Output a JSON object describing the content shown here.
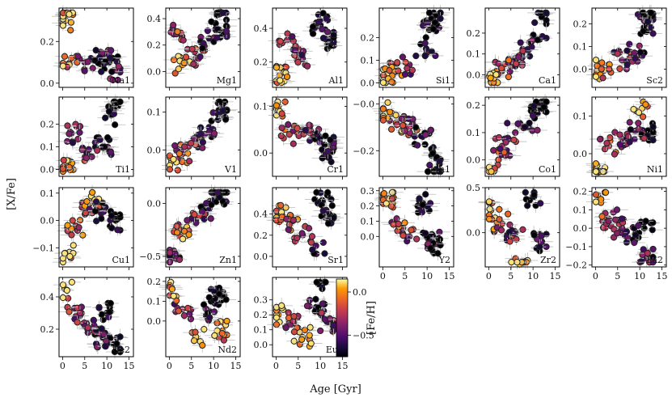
{
  "chart_data": {
    "type": "scatter",
    "xlabel": "Age [Gyr]",
    "ylabel": "[X/Fe]",
    "colorbar": {
      "label": "[Fe/H]",
      "range": [
        -0.75,
        0.15
      ],
      "ticks": [
        "0.0",
        "−0.5"
      ],
      "tick_values": [
        0.0,
        -0.5
      ],
      "cmap": "inferno"
    },
    "x_ticks": [
      "0",
      "5",
      "10",
      "15"
    ],
    "x_tick_values": [
      0,
      5,
      10,
      15
    ],
    "xlim": [
      -0.8,
      16
    ],
    "panels": [
      {
        "label": "Na1",
        "ylim": [
          -0.02,
          0.36
        ],
        "yticks": [
          "0.0",
          "0.2"
        ],
        "ytick_values": [
          0.0,
          0.2
        ]
      },
      {
        "label": "Mg1",
        "ylim": [
          -0.12,
          0.48
        ],
        "yticks": [
          "0.0",
          "0.2",
          "0.4"
        ],
        "ytick_values": [
          0.0,
          0.2,
          0.4
        ]
      },
      {
        "label": "Al1",
        "ylim": [
          0.05,
          0.52
        ],
        "yticks": [
          "0.2",
          "0.4"
        ],
        "ytick_values": [
          0.2,
          0.4
        ]
      },
      {
        "label": "Si1",
        "ylim": [
          -0.02,
          0.33
        ],
        "yticks": [
          "0.0",
          "0.1",
          "0.2"
        ],
        "ytick_values": [
          0.0,
          0.1,
          0.2
        ]
      },
      {
        "label": "Ca1",
        "ylim": [
          -0.06,
          0.32
        ],
        "yticks": [
          "0.0",
          "0.1",
          "0.2"
        ],
        "ytick_values": [
          0.0,
          0.1,
          0.2
        ]
      },
      {
        "label": "Sc2",
        "ylim": [
          -0.08,
          0.27
        ],
        "yticks": [
          "0.0",
          "0.1",
          "0.2"
        ],
        "ytick_values": [
          0.0,
          0.1,
          0.2
        ]
      },
      {
        "label": "Ti1",
        "ylim": [
          -0.03,
          0.32
        ],
        "yticks": [
          "0.0",
          "0.1",
          "0.2"
        ],
        "ytick_values": [
          0.0,
          0.1,
          0.2
        ]
      },
      {
        "label": "V1",
        "ylim": [
          -0.07,
          0.14
        ],
        "yticks": [
          "0.0",
          "0.1"
        ],
        "ytick_values": [
          0.0,
          0.1
        ]
      },
      {
        "label": "Cr1",
        "ylim": [
          -0.05,
          0.12
        ],
        "yticks": [
          "0.0",
          "0.1"
        ],
        "ytick_values": [
          0.0,
          0.1
        ]
      },
      {
        "label": "Mn1",
        "ylim": [
          -0.31,
          0.03
        ],
        "yticks": [
          "−0.2",
          "−0.0"
        ],
        "ytick_values": [
          -0.2,
          0.0
        ]
      },
      {
        "label": "Co1",
        "ylim": [
          -0.06,
          0.23
        ],
        "yticks": [
          "0.0",
          "0.1",
          "0.2"
        ],
        "ytick_values": [
          0.0,
          0.1,
          0.2
        ]
      },
      {
        "label": "Ni1",
        "ylim": [
          -0.06,
          0.15
        ],
        "yticks": [
          "0.0",
          "0.1"
        ],
        "ytick_values": [
          0.0,
          0.1
        ]
      },
      {
        "label": "Cu1",
        "ylim": [
          -0.17,
          0.12
        ],
        "yticks": [
          "−0.1",
          "0.0",
          "0.1"
        ],
        "ytick_values": [
          -0.1,
          0.0,
          0.1
        ]
      },
      {
        "label": "Zn1",
        "ylim": [
          -0.6,
          0.15
        ],
        "yticks": [
          "−0.5",
          "0.0"
        ],
        "ytick_values": [
          -0.5,
          0.0
        ]
      },
      {
        "label": "Sr1",
        "ylim": [
          -0.1,
          0.65
        ],
        "yticks": [
          "0.0",
          "0.2",
          "0.4"
        ],
        "ytick_values": [
          0.0,
          0.2,
          0.4
        ]
      },
      {
        "label": "Y2",
        "ylim": [
          -0.2,
          0.32
        ],
        "yticks": [
          "0.0",
          "0.1",
          "0.2",
          "0.3"
        ],
        "ytick_values": [
          0.0,
          0.1,
          0.2,
          0.3
        ]
      },
      {
        "label": "Zr2",
        "ylim": [
          -0.38,
          0.5
        ],
        "yticks": [
          "0.0",
          "0.5"
        ],
        "ytick_values": [
          0.0,
          0.5
        ]
      },
      {
        "label": "La2",
        "ylim": [
          -0.21,
          0.22
        ],
        "yticks": [
          "−0.2",
          "−0.1",
          "0.0",
          "0.1",
          "0.2"
        ],
        "ytick_values": [
          -0.2,
          -0.1,
          0.0,
          0.1,
          0.2
        ]
      },
      {
        "label": "Ce2",
        "ylim": [
          0.03,
          0.52
        ],
        "yticks": [
          "0.2",
          "0.4"
        ],
        "ytick_values": [
          0.2,
          0.4
        ]
      },
      {
        "label": "Nd2",
        "ylim": [
          -0.18,
          0.22
        ],
        "yticks": [
          "0.0",
          "0.1",
          "0.2"
        ],
        "ytick_values": [
          0.0,
          0.1,
          0.2
        ]
      },
      {
        "label": "Eu2",
        "ylim": [
          -0.08,
          0.45
        ],
        "yticks": [
          "0.0",
          "0.1",
          "0.2",
          "0.3"
        ],
        "ytick_values": [
          0.0,
          0.1,
          0.2,
          0.3
        ]
      }
    ],
    "sample_points": {
      "note": "approximately 100 stars per panel; representative points read from the figure",
      "Na1": [
        [
          0.3,
          0.33,
          0.05
        ],
        [
          0.7,
          0.3,
          0.1
        ],
        [
          2,
          0.12,
          -0.1
        ],
        [
          5,
          0.1,
          -0.4
        ],
        [
          9,
          0.13,
          -0.6
        ],
        [
          10.5,
          0.1,
          -0.8
        ],
        [
          11.5,
          0.06,
          -0.5
        ]
      ],
      "Mg1": [
        [
          1.5,
          0.3,
          -0.2
        ],
        [
          3,
          0.05,
          0.05
        ],
        [
          6,
          0.1,
          -0.3
        ],
        [
          9,
          0.25,
          -0.6
        ],
        [
          11.5,
          0.45,
          -0.8
        ],
        [
          12,
          0.3,
          -0.7
        ]
      ],
      "Al1": [
        [
          0.8,
          0.12,
          0.05
        ],
        [
          2.5,
          0.33,
          -0.3
        ],
        [
          6,
          0.22,
          -0.4
        ],
        [
          10,
          0.42,
          -0.7
        ],
        [
          11.5,
          0.47,
          -0.8
        ],
        [
          12.5,
          0.33,
          -0.6
        ]
      ],
      "Si1": [
        [
          0.5,
          0.02,
          0.1
        ],
        [
          3,
          0.05,
          -0.1
        ],
        [
          6,
          0.08,
          -0.4
        ],
        [
          10,
          0.14,
          -0.5
        ],
        [
          11,
          0.24,
          -0.7
        ],
        [
          12.5,
          0.3,
          -0.8
        ]
      ],
      "Ca1": [
        [
          0.5,
          -0.03,
          0.1
        ],
        [
          3,
          0.03,
          -0.2
        ],
        [
          6,
          0.08,
          -0.4
        ],
        [
          9,
          0.12,
          -0.5
        ],
        [
          11.5,
          0.17,
          -0.7
        ],
        [
          12,
          0.29,
          -0.8
        ]
      ],
      "Sc2": [
        [
          0.5,
          0.0,
          0.0
        ],
        [
          3,
          0.02,
          -0.2
        ],
        [
          6,
          0.04,
          -0.4
        ],
        [
          9,
          0.07,
          -0.5
        ],
        [
          11.5,
          0.2,
          -0.7
        ],
        [
          12.5,
          0.23,
          -0.8
        ]
      ],
      "Ti1": [
        [
          0.5,
          0.0,
          0.05
        ],
        [
          2,
          0.16,
          -0.5
        ],
        [
          6,
          0.06,
          -0.4
        ],
        [
          9,
          0.1,
          -0.6
        ],
        [
          11,
          0.24,
          -0.8
        ],
        [
          12.5,
          0.28,
          -0.8
        ]
      ],
      "V1": [
        [
          0.5,
          -0.03,
          0.05
        ],
        [
          3,
          -0.01,
          -0.2
        ],
        [
          6,
          0.03,
          -0.4
        ],
        [
          9,
          0.06,
          -0.6
        ],
        [
          11,
          0.08,
          -0.7
        ],
        [
          12,
          0.12,
          -0.8
        ]
      ],
      "Cr1": [
        [
          0.5,
          0.1,
          0.05
        ],
        [
          3,
          0.04,
          -0.2
        ],
        [
          6,
          0.05,
          -0.4
        ],
        [
          9,
          0.04,
          -0.5
        ],
        [
          11,
          0.0,
          -0.6
        ],
        [
          12.5,
          0.02,
          -0.7
        ]
      ],
      "Mn1": [
        [
          0.5,
          -0.03,
          0.05
        ],
        [
          3,
          -0.08,
          -0.1
        ],
        [
          6,
          -0.1,
          -0.3
        ],
        [
          9,
          -0.14,
          -0.6
        ],
        [
          11,
          -0.22,
          -0.7
        ],
        [
          12,
          -0.28,
          -0.8
        ]
      ],
      "Co1": [
        [
          0.5,
          -0.03,
          0.05
        ],
        [
          3,
          0.05,
          -0.3
        ],
        [
          6,
          0.1,
          -0.4
        ],
        [
          9,
          0.12,
          -0.6
        ],
        [
          11,
          0.17,
          -0.7
        ],
        [
          12.5,
          0.21,
          -0.8
        ]
      ],
      "Ni1": [
        [
          0.5,
          -0.05,
          0.05
        ],
        [
          3,
          0.02,
          -0.2
        ],
        [
          6,
          0.04,
          -0.4
        ],
        [
          9,
          0.06,
          -0.5
        ],
        [
          10.5,
          0.12,
          0.1
        ],
        [
          12,
          0.06,
          -0.8
        ]
      ],
      "Cu1": [
        [
          0.5,
          -0.12,
          0.1
        ],
        [
          3,
          -0.02,
          -0.2
        ],
        [
          6,
          0.03,
          -0.4
        ],
        [
          7,
          0.07,
          0.1
        ],
        [
          9,
          0.04,
          -0.6
        ],
        [
          12,
          0.0,
          -0.8
        ]
      ],
      "Zn1": [
        [
          0.5,
          -0.52,
          -0.5
        ],
        [
          3,
          -0.25,
          -0.1
        ],
        [
          6,
          -0.15,
          -0.4
        ],
        [
          9,
          -0.05,
          -0.6
        ],
        [
          11,
          0.05,
          -0.7
        ],
        [
          12,
          0.1,
          -0.8
        ]
      ],
      "Sr1": [
        [
          0.5,
          0.4,
          0.05
        ],
        [
          3,
          0.3,
          -0.2
        ],
        [
          6,
          0.2,
          -0.4
        ],
        [
          9,
          0.1,
          -0.5
        ],
        [
          10.5,
          0.52,
          -0.8
        ],
        [
          12,
          0.4,
          -0.7
        ]
      ],
      "Y2": [
        [
          0.5,
          0.25,
          0.05
        ],
        [
          3,
          0.08,
          -0.2
        ],
        [
          6,
          0.0,
          -0.4
        ],
        [
          9,
          0.22,
          -0.8
        ],
        [
          11,
          -0.03,
          -0.6
        ],
        [
          12.5,
          -0.05,
          -0.7
        ]
      ],
      "Zr2": [
        [
          0.5,
          0.25,
          0.05
        ],
        [
          3,
          0.1,
          -0.2
        ],
        [
          6,
          0.0,
          -0.4
        ],
        [
          7,
          -0.35,
          0.1
        ],
        [
          10,
          0.4,
          -0.8
        ],
        [
          12,
          -0.1,
          -0.6
        ]
      ],
      "La2": [
        [
          0.5,
          0.18,
          0.1
        ],
        [
          3,
          0.05,
          -0.2
        ],
        [
          6,
          0.0,
          -0.4
        ],
        [
          9,
          -0.03,
          -0.6
        ],
        [
          11,
          0.0,
          -0.8
        ],
        [
          12,
          -0.16,
          -0.5
        ]
      ],
      "Ce2": [
        [
          0.5,
          0.45,
          0.05
        ],
        [
          3,
          0.28,
          -0.3
        ],
        [
          6,
          0.2,
          -0.4
        ],
        [
          9,
          0.15,
          -0.6
        ],
        [
          10,
          0.3,
          -0.8
        ],
        [
          12,
          0.1,
          -0.7
        ]
      ],
      "Nd2": [
        [
          0.5,
          0.17,
          0.05
        ],
        [
          3,
          0.06,
          -0.3
        ],
        [
          6,
          -0.08,
          0.1
        ],
        [
          9,
          0.05,
          -0.6
        ],
        [
          11,
          0.13,
          -0.8
        ],
        [
          12,
          -0.05,
          0.0
        ]
      ],
      "Eu2": [
        [
          0.5,
          0.2,
          0.05
        ],
        [
          3,
          0.15,
          -0.3
        ],
        [
          6,
          0.05,
          0.1
        ],
        [
          9,
          0.25,
          -0.6
        ],
        [
          11,
          0.42,
          -0.8
        ],
        [
          12,
          0.15,
          -0.5
        ]
      ]
    }
  }
}
